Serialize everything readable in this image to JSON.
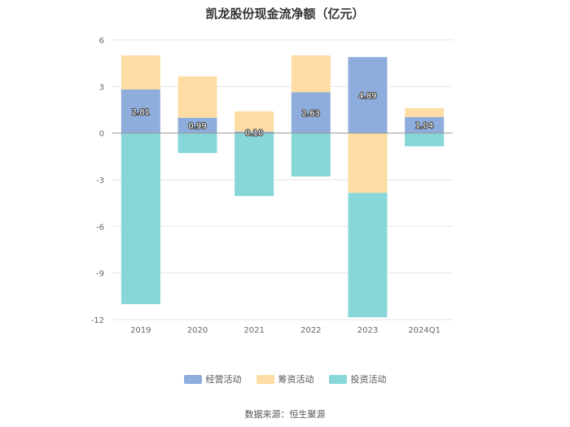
{
  "chart_data": {
    "type": "bar",
    "stacked": true,
    "title": "凯龙股份现金流净额（亿元）",
    "categories": [
      "2019",
      "2020",
      "2021",
      "2022",
      "2023",
      "2024Q1"
    ],
    "ylim": [
      -12,
      6
    ],
    "yticks": [
      6,
      3,
      0,
      -3,
      -6,
      -9,
      -12
    ],
    "grid": true,
    "legend_position": "bottom",
    "series": [
      {
        "name": "经营活动",
        "color": "#8eacdc",
        "values": [
          2.81,
          0.99,
          0.1,
          2.63,
          4.89,
          1.04
        ]
      },
      {
        "name": "筹资活动",
        "color": "#fddda3",
        "values": [
          2.19,
          2.66,
          1.3,
          2.37,
          -3.85,
          0.56
        ]
      },
      {
        "name": "投资活动",
        "color": "#87d6d8",
        "values": [
          -11.0,
          -1.28,
          -4.05,
          -2.79,
          -8.0,
          -0.85
        ]
      }
    ],
    "data_labels": [
      "2.81",
      "0.99",
      "0.10",
      "2.63",
      "4.89",
      "1.04"
    ],
    "source": "数据来源：恒生聚源"
  }
}
